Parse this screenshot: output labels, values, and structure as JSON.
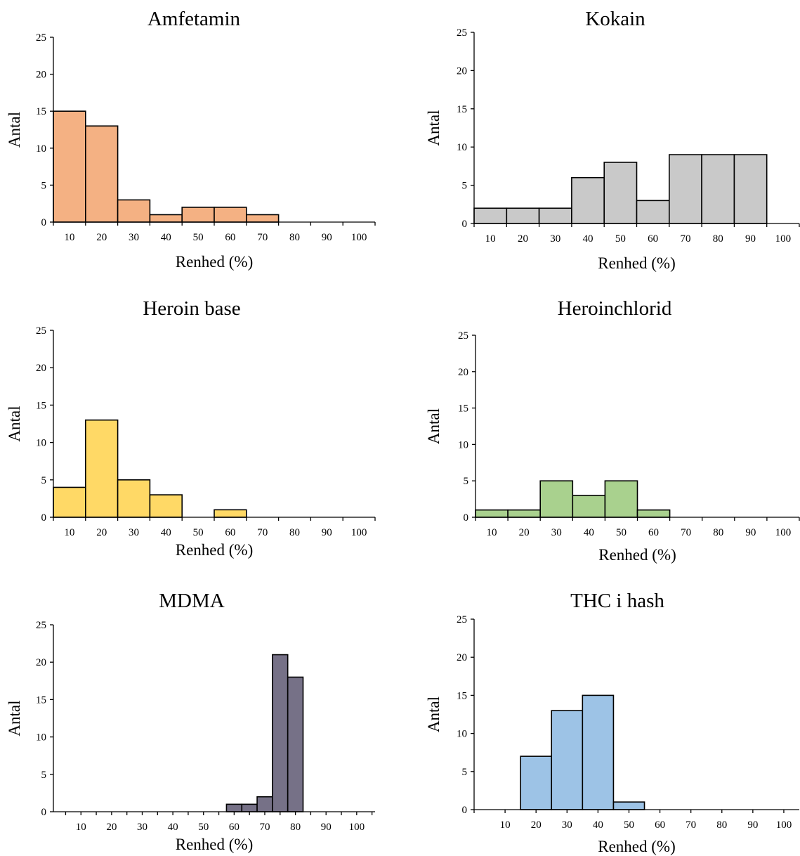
{
  "chart_data": [
    {
      "type": "bar",
      "title": "Amfetamin",
      "xlabel": "Renhed (%)",
      "ylabel": "Antal",
      "ylim": [
        0,
        25
      ],
      "yticks": [
        0,
        5,
        10,
        15,
        20,
        25
      ],
      "xlim": [
        5,
        105
      ],
      "xticks": [
        10,
        20,
        30,
        40,
        50,
        60,
        70,
        80,
        90,
        100
      ],
      "color": "#F4B183",
      "bins": [
        {
          "from": 5,
          "to": 15,
          "value": 15
        },
        {
          "from": 15,
          "to": 25,
          "value": 13
        },
        {
          "from": 25,
          "to": 35,
          "value": 3
        },
        {
          "from": 35,
          "to": 45,
          "value": 1
        },
        {
          "from": 45,
          "to": 55,
          "value": 2
        },
        {
          "from": 55,
          "to": 65,
          "value": 2
        },
        {
          "from": 65,
          "to": 75,
          "value": 1
        }
      ]
    },
    {
      "type": "bar",
      "title": "Kokain",
      "xlabel": "Renhed (%)",
      "ylabel": "Antal",
      "ylim": [
        0,
        25
      ],
      "yticks": [
        0,
        5,
        10,
        15,
        20,
        25
      ],
      "xlim": [
        5,
        105
      ],
      "xticks": [
        10,
        20,
        30,
        40,
        50,
        60,
        70,
        80,
        90,
        100
      ],
      "color": "#C9C9C9",
      "bins": [
        {
          "from": 5,
          "to": 15,
          "value": 2
        },
        {
          "from": 15,
          "to": 25,
          "value": 2
        },
        {
          "from": 25,
          "to": 35,
          "value": 2
        },
        {
          "from": 35,
          "to": 45,
          "value": 6
        },
        {
          "from": 45,
          "to": 55,
          "value": 8
        },
        {
          "from": 55,
          "to": 65,
          "value": 3
        },
        {
          "from": 65,
          "to": 75,
          "value": 9
        },
        {
          "from": 75,
          "to": 85,
          "value": 9
        },
        {
          "from": 85,
          "to": 95,
          "value": 9
        }
      ]
    },
    {
      "type": "bar",
      "title": "Heroin base",
      "xlabel": "Renhed (%)",
      "ylabel": "Antal",
      "ylim": [
        0,
        25
      ],
      "yticks": [
        0,
        5,
        10,
        15,
        20,
        25
      ],
      "xlim": [
        5,
        105
      ],
      "xticks": [
        10,
        20,
        30,
        40,
        50,
        60,
        70,
        80,
        90,
        100
      ],
      "color": "#FFD966",
      "bins": [
        {
          "from": 5,
          "to": 15,
          "value": 4
        },
        {
          "from": 15,
          "to": 25,
          "value": 13
        },
        {
          "from": 25,
          "to": 35,
          "value": 5
        },
        {
          "from": 35,
          "to": 45,
          "value": 3
        },
        {
          "from": 55,
          "to": 65,
          "value": 1
        }
      ]
    },
    {
      "type": "bar",
      "title": "Heroinchlorid",
      "xlabel": "Renhed (%)",
      "ylabel": "Antal",
      "ylim": [
        0,
        25
      ],
      "yticks": [
        0,
        5,
        10,
        15,
        20,
        25
      ],
      "xlim": [
        5,
        105
      ],
      "xticks": [
        10,
        20,
        30,
        40,
        50,
        60,
        70,
        80,
        90,
        100
      ],
      "color": "#A9D18E",
      "bins": [
        {
          "from": 5,
          "to": 15,
          "value": 1
        },
        {
          "from": 15,
          "to": 25,
          "value": 1
        },
        {
          "from": 25,
          "to": 35,
          "value": 5
        },
        {
          "from": 35,
          "to": 45,
          "value": 3
        },
        {
          "from": 45,
          "to": 55,
          "value": 5
        },
        {
          "from": 55,
          "to": 65,
          "value": 1
        }
      ]
    },
    {
      "type": "bar",
      "title": "MDMA",
      "xlabel": "Renhed (%)",
      "ylabel": "Antal",
      "ylim": [
        0,
        25
      ],
      "yticks": [
        0,
        5,
        10,
        15,
        20,
        25
      ],
      "xlim": [
        1,
        106
      ],
      "xticks": [
        10,
        20,
        30,
        40,
        50,
        60,
        70,
        80,
        90,
        100
      ],
      "color": "#767187",
      "bins": [
        {
          "from": 57.5,
          "to": 62.5,
          "value": 1
        },
        {
          "from": 62.5,
          "to": 67.5,
          "value": 1
        },
        {
          "from": 67.5,
          "to": 72.5,
          "value": 2
        },
        {
          "from": 72.5,
          "to": 77.5,
          "value": 21
        },
        {
          "from": 77.5,
          "to": 82.5,
          "value": 18
        }
      ]
    },
    {
      "type": "bar",
      "title": "THC i hash",
      "xlabel": "Renhed (%)",
      "ylabel": "Antal",
      "ylim": [
        0,
        25
      ],
      "yticks": [
        0,
        5,
        10,
        15,
        20,
        25
      ],
      "xlim": [
        0,
        105
      ],
      "xticks": [
        10,
        20,
        30,
        40,
        50,
        60,
        70,
        80,
        90,
        100
      ],
      "color": "#9DC3E6",
      "bins": [
        {
          "from": 15,
          "to": 25,
          "value": 7
        },
        {
          "from": 25,
          "to": 35,
          "value": 13
        },
        {
          "from": 35,
          "to": 45,
          "value": 15
        },
        {
          "from": 45,
          "to": 55,
          "value": 1
        }
      ]
    }
  ]
}
